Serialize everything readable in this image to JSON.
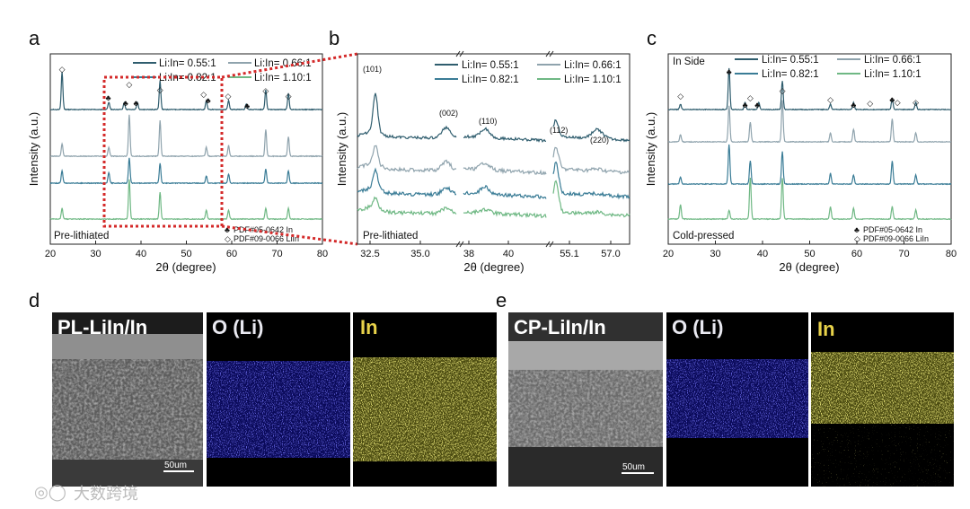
{
  "figure": {
    "panels": {
      "a": {
        "letter": "a",
        "ylabel": "Intensity (a.u.)",
        "xlabel": "2θ (degree)",
        "xticks": [
          "20",
          "30",
          "40",
          "50",
          "60",
          "70",
          "80"
        ],
        "xrange": [
          20,
          80
        ],
        "note": "Pre-lithiated",
        "ref1": "PDF#05-0642 In",
        "ref2": "PDF#09-0066 LiIn"
      },
      "b": {
        "letter": "b",
        "ylabel": "Intensity (a.u.)",
        "xlabel": "2θ (degree)",
        "xticks": [
          "32.5",
          "35.0",
          "38",
          "40",
          "55.1",
          "57.0"
        ],
        "peaks": [
          "(101)",
          "(002)",
          "(110)",
          "(112)",
          "(220)"
        ],
        "note": "Pre-lithiated"
      },
      "c": {
        "letter": "c",
        "ylabel": "Intensity (a.u.)",
        "xlabel": "2θ (degree)",
        "xticks": [
          "20",
          "30",
          "40",
          "50",
          "60",
          "70",
          "80"
        ],
        "xrange": [
          20,
          80
        ],
        "note_top": "In Side",
        "note": "Cold-pressed",
        "ref1": "PDF#05-0642 In",
        "ref2": "PDF#09-0066 LiIn"
      },
      "d": {
        "letter": "d",
        "labels": [
          "PL-LiIn/In",
          "O (Li)",
          "In"
        ],
        "scale": "50um"
      },
      "e": {
        "letter": "e",
        "labels": [
          "CP-LiIn/In",
          "O (Li)",
          "In"
        ],
        "scale": "50um"
      }
    },
    "legend": [
      "Li:In= 0.55:1",
      "Li:In= 0.66:1",
      "Li:In= 0.82:1",
      "Li:In= 1.10:1"
    ],
    "colors": {
      "s055": "#2f5d6e",
      "s066": "#8fa3ad",
      "s082": "#3a7c96",
      "s110": "#6fb884",
      "highlight": "#d42a2a",
      "eds_o": "#2a2ad8",
      "eds_in": "#d8d030"
    },
    "watermark": "大数跨境"
  },
  "chart_data": [
    {
      "type": "line",
      "title": "a",
      "xlabel": "2θ (degree)",
      "ylabel": "Intensity (a.u.)",
      "xlim": [
        20,
        80
      ],
      "series": [
        {
          "name": "Li:In= 0.55:1",
          "peaks_x": [
            22.6,
            32.9,
            36.3,
            39.2,
            44.2,
            54.4,
            59.3,
            63.2,
            67.5,
            72.5
          ]
        },
        {
          "name": "Li:In= 0.66:1",
          "peaks_x": [
            22.6,
            32.9,
            37.4,
            44.2,
            54.4,
            59.3,
            67.5,
            72.5
          ]
        },
        {
          "name": "Li:In= 0.82:1",
          "peaks_x": [
            22.6,
            32.9,
            37.4,
            44.2,
            54.4,
            59.3,
            67.5,
            72.5
          ]
        },
        {
          "name": "Li:In= 1.10:1",
          "peaks_x": [
            22.6,
            37.4,
            44.2,
            54.4,
            59.3,
            67.5,
            72.5
          ]
        }
      ]
    },
    {
      "type": "line",
      "title": "c",
      "xlabel": "2θ (degree)",
      "ylabel": "Intensity (a.u.)",
      "xlim": [
        20,
        80
      ],
      "series": [
        {
          "name": "Li:In= 0.55:1",
          "peaks_x": [
            22.6,
            32.9,
            36.3,
            39.2,
            44.2,
            54.4,
            59.3,
            67.5,
            72.5
          ]
        },
        {
          "name": "Li:In= 0.66:1",
          "peaks_x": [
            22.6,
            32.9,
            37.4,
            44.2,
            54.4,
            59.3,
            67.5,
            72.5
          ]
        },
        {
          "name": "Li:In= 0.82:1",
          "peaks_x": [
            22.6,
            32.9,
            37.4,
            44.2,
            54.4,
            59.3,
            67.5,
            72.5
          ]
        },
        {
          "name": "Li:In= 1.10:1",
          "peaks_x": [
            22.6,
            32.9,
            37.4,
            44.2,
            54.4,
            59.3,
            67.5,
            72.5
          ]
        }
      ]
    }
  ]
}
